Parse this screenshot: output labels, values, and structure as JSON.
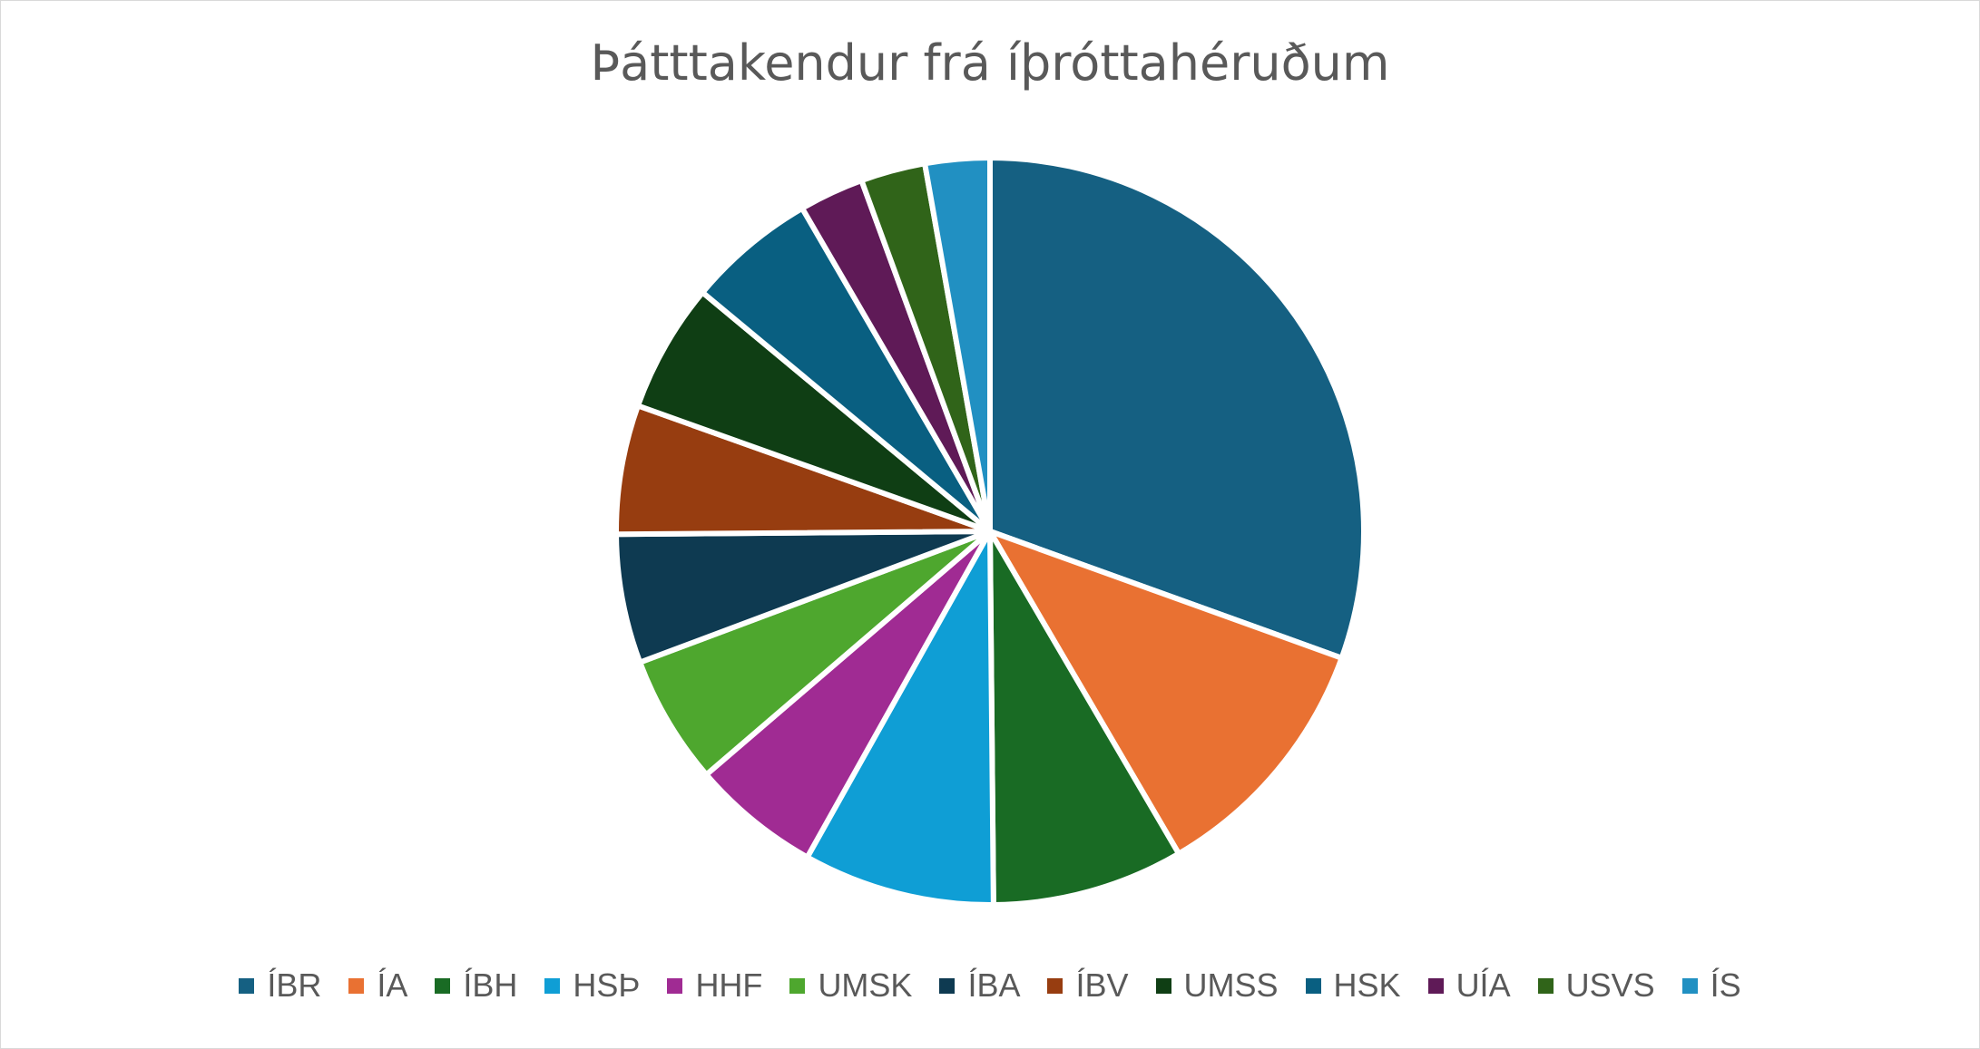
{
  "chart_data": {
    "type": "pie",
    "title": "Þátttakendur frá íþróttahéruðum",
    "legend_position": "bottom",
    "categories": [
      "ÍBR",
      "ÍA",
      "ÍBH",
      "HSÞ",
      "HHF",
      "UMSK",
      "ÍBA",
      "ÍBV",
      "UMSS",
      "HSK",
      "UÍA",
      "USVS",
      "ÍS"
    ],
    "values": [
      30.6,
      11.1,
      8.3,
      8.3,
      5.6,
      5.6,
      5.6,
      5.6,
      5.6,
      5.6,
      2.8,
      2.8,
      2.8
    ],
    "colors": [
      "#156082",
      "#e97132",
      "#196b24",
      "#0f9ed5",
      "#a02b93",
      "#4ea72e",
      "#0e3a51",
      "#973d10",
      "#0f3e14",
      "#095f81",
      "#5f1a57",
      "#306419",
      "#2190c2"
    ]
  }
}
